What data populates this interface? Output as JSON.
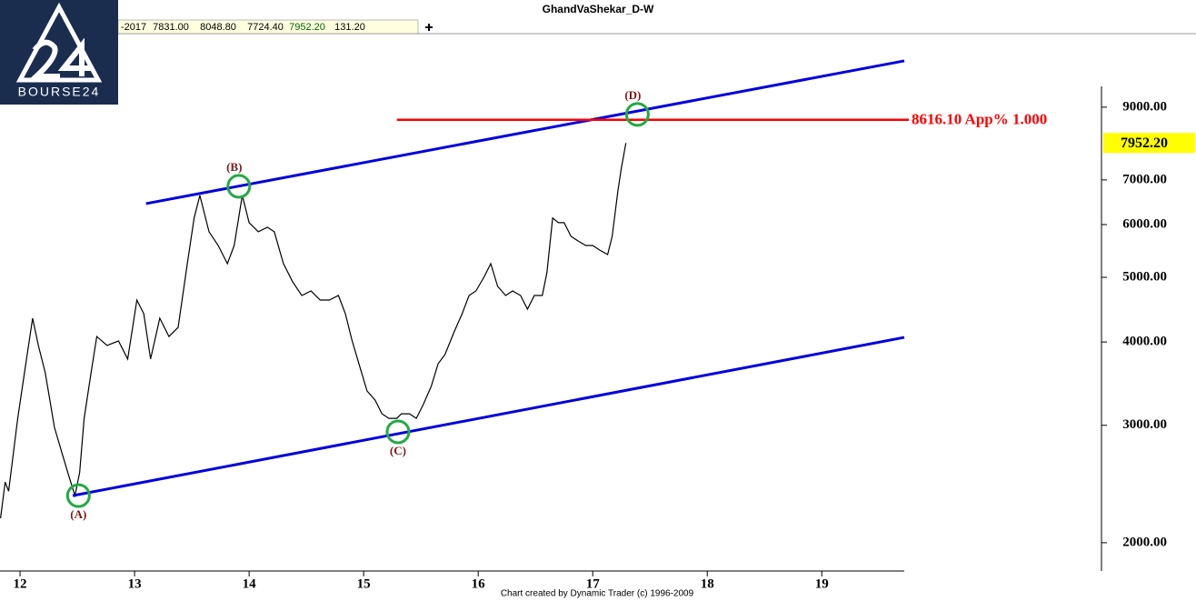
{
  "chart_data": {
    "type": "line",
    "title": "GhandVaShekar_D-W",
    "logo": "BOURSE24",
    "toolbar": [
      "-2017",
      "7831.00",
      "8048.80",
      "7724.40",
      "7952.20",
      "131.20"
    ],
    "footer": "Chart created by Dynamic Trader  (c) 1996-2009",
    "log_scale": true,
    "x": [
      11.83,
      11.87,
      11.9,
      11.98,
      12.05,
      12.11,
      12.16,
      12.22,
      12.3,
      12.37,
      12.43,
      12.48,
      12.52,
      12.56,
      12.62,
      12.67,
      12.76,
      12.86,
      12.94,
      13.02,
      13.08,
      13.14,
      13.22,
      13.3,
      13.38,
      13.46,
      13.52,
      13.57,
      13.65,
      13.73,
      13.81,
      13.87,
      13.94,
      14.0,
      14.08,
      14.16,
      14.22,
      14.3,
      14.38,
      14.46,
      14.54,
      14.62,
      14.7,
      14.78,
      14.84,
      14.9,
      14.97,
      15.03,
      15.1,
      15.16,
      15.22,
      15.29,
      15.33,
      15.4,
      15.46,
      15.52,
      15.59,
      15.65,
      15.71,
      15.79,
      15.86,
      15.92,
      15.98,
      16.05,
      16.11,
      16.17,
      16.24,
      16.3,
      16.37,
      16.43,
      16.49,
      16.56,
      16.6,
      16.65,
      16.7,
      16.75,
      16.81,
      16.87,
      16.94,
      17.0,
      17.06,
      17.13,
      17.17,
      17.22,
      17.25,
      17.29
    ],
    "series": [
      {
        "color": "#000000",
        "values": [
          2176,
          2466,
          2390,
          3073,
          3711,
          4342,
          3953,
          3596,
          2979,
          2712,
          2506,
          2353,
          2546,
          3073,
          3596,
          4077,
          3953,
          4014,
          3771,
          4624,
          4411,
          3771,
          4342,
          4077,
          4207,
          5242,
          6136,
          6635,
          5852,
          5582,
          5242,
          5582,
          6635,
          6039,
          5852,
          5945,
          5852,
          5242,
          4924,
          4697,
          4771,
          4624,
          4624,
          4697,
          4411,
          4014,
          3654,
          3378,
          3273,
          3122,
          3073,
          3073,
          3122,
          3122,
          3073,
          3222,
          3432,
          3711,
          3830,
          4142,
          4411,
          4697,
          4771,
          5002,
          5242,
          4847,
          4697,
          4771,
          4697,
          4480,
          4697,
          4697,
          5081,
          6136,
          6039,
          6039,
          5761,
          5671,
          5582,
          5582,
          5495,
          5410,
          5761,
          6740,
          7292,
          7952.2
        ]
      }
    ],
    "xlim": [
      11.825,
      19.72
    ],
    "xticks": [
      12,
      13,
      14,
      15,
      16,
      17,
      18,
      19
    ],
    "ylim": [
      1814,
      11600
    ],
    "yticks": [
      {
        "value": 2000,
        "label": "2000.00"
      },
      {
        "value": 3000,
        "label": "3000.00"
      },
      {
        "value": 4000,
        "label": "4000.00"
      },
      {
        "value": 5000,
        "label": "5000.00"
      },
      {
        "value": 6000,
        "label": "6000.00"
      },
      {
        "value": 7000,
        "label": "7000.00"
      },
      {
        "value": 9000,
        "label": "9000.00"
      }
    ],
    "last_price": {
      "value": 7952.2,
      "label": "7952.20"
    },
    "channel_lines": [
      {
        "color": "#0000dd",
        "x": [
          13.1,
          19.72
        ],
        "values": [
          6450,
          10560
        ]
      },
      {
        "color": "#0000dd",
        "x": [
          12.46,
          19.72
        ],
        "values": [
          2353,
          4064
        ]
      }
    ],
    "hline": {
      "value": 8616.1,
      "label": "8616.10 App% 1.000",
      "color": "#ff0000",
      "x_start": 15.29
    },
    "points": [
      {
        "label": "(A)",
        "x": 12.51,
        "value": 2353,
        "position": "below"
      },
      {
        "label": "(B)",
        "x": 13.91,
        "value": 6847,
        "position": "above"
      },
      {
        "label": "(C)",
        "x": 15.3,
        "value": 2933,
        "position": "below"
      },
      {
        "label": "(D)",
        "x": 17.39,
        "value": 8777,
        "position": "above"
      }
    ]
  }
}
